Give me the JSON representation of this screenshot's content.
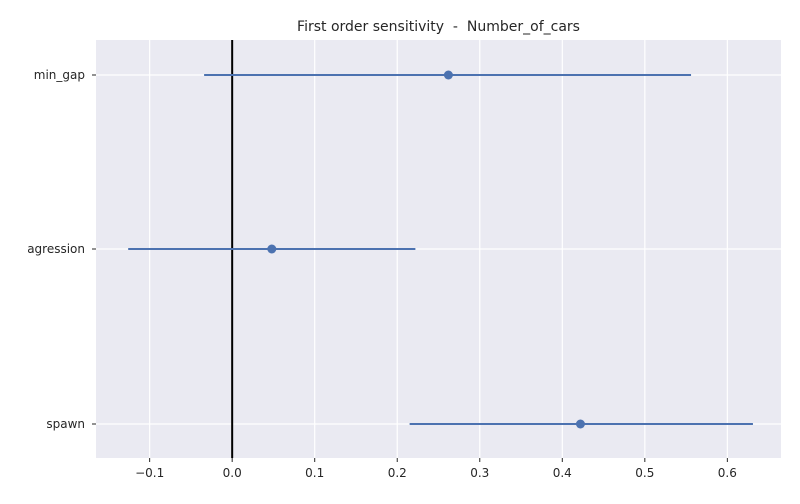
{
  "chart_data": {
    "type": "errorbar",
    "title": "First order sensitivity  -  Number_of_cars",
    "xlabel": "",
    "ylabel": "",
    "categories": [
      "min_gap",
      "agression",
      "spawn"
    ],
    "values": [
      0.262,
      0.048,
      0.422
    ],
    "ci_low": [
      -0.034,
      -0.126,
      0.215
    ],
    "ci_high": [
      0.556,
      0.222,
      0.631
    ],
    "xlim": [
      -0.165,
      0.665
    ],
    "xticks": [
      -0.1,
      0.0,
      0.1,
      0.2,
      0.3,
      0.4,
      0.5,
      0.6
    ],
    "xtick_labels": [
      "−0.1",
      "0.0",
      "0.1",
      "0.2",
      "0.3",
      "0.4",
      "0.5",
      "0.6"
    ],
    "reference_line_x": 0,
    "grid": true,
    "colors": {
      "background": "#EAEAF2",
      "grid": "#FFFFFF",
      "series": "#4C72B0",
      "reference": "#000000"
    }
  }
}
